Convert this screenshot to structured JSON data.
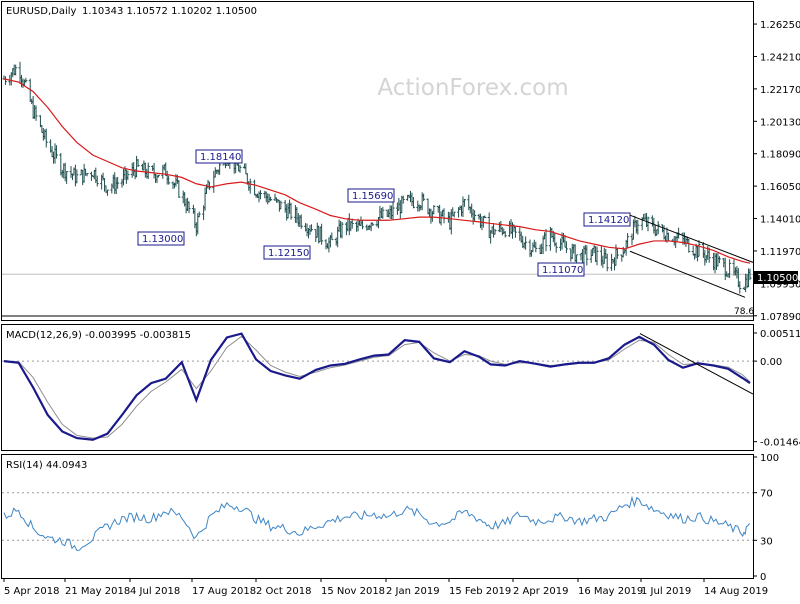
{
  "header": {
    "symbol": "EURUSD,Daily",
    "ohlc": "1.10343 1.10572 1.10202 1.10500"
  },
  "watermark": "ActionForex.com",
  "colors": {
    "background": "#ffffff",
    "price_bars": "#1f4e4e",
    "sma": "#d91a1a",
    "macd": "#1a1a8c",
    "signal": "#8f8f8f",
    "rsi": "#3f86c6",
    "box_border": "#1a1a8c",
    "channel": "#000000",
    "current_price_bg": "#000000",
    "current_price_fg": "#ffffff"
  },
  "chart_data": [
    {
      "type": "candlestick",
      "panel": "price",
      "title": "EURUSD,Daily",
      "ylim": [
        1.0775,
        1.2745
      ],
      "y_ticks": [
        "1.26250",
        "1.24210",
        "1.22170",
        "1.20130",
        "1.18090",
        "1.16050",
        "1.14010",
        "1.11970",
        "1.09930",
        "1.07890"
      ],
      "current_price": "1.10500",
      "x_tick_labels": [
        "5 Apr 2018",
        "21 May 2018",
        "4 Jul 2018",
        "17 Aug 2018",
        "2 Oct 2018",
        "15 Nov 2018",
        "2 Jan 2019",
        "15 Feb 2019",
        "2 Apr 2019",
        "16 May 2019",
        "1 Jul 2019",
        "14 Aug 2019"
      ],
      "key_levels": [
        {
          "label": "1.18140",
          "date": "Aug 2018",
          "value": 1.1814,
          "type": "high"
        },
        {
          "label": "1.13000",
          "date": "Aug 2018",
          "value": 1.13,
          "type": "low"
        },
        {
          "label": "1.12150",
          "date": "Nov 2018",
          "value": 1.1215,
          "type": "low"
        },
        {
          "label": "1.15690",
          "date": "Jan 2019",
          "value": 1.1569,
          "type": "high"
        },
        {
          "label": "1.14120",
          "date": "Jun 2019",
          "value": 1.1412,
          "type": "high"
        },
        {
          "label": "1.11070",
          "date": "May 2019",
          "value": 1.1107,
          "type": "low"
        }
      ],
      "fib_label": "78.6",
      "sma_series_name": "",
      "close_series": {
        "x": [
          "2018-04-05",
          "2018-04-15",
          "2018-04-25",
          "2018-05-05",
          "2018-05-15",
          "2018-05-25",
          "2018-06-05",
          "2018-06-15",
          "2018-06-25",
          "2018-07-05",
          "2018-07-15",
          "2018-07-25",
          "2018-08-05",
          "2018-08-15",
          "2018-08-25",
          "2018-09-05",
          "2018-09-15",
          "2018-09-25",
          "2018-10-05",
          "2018-10-15",
          "2018-10-25",
          "2018-11-05",
          "2018-11-15",
          "2018-11-25",
          "2018-12-05",
          "2018-12-15",
          "2018-12-25",
          "2019-01-05",
          "2019-01-15",
          "2019-01-25",
          "2019-02-05",
          "2019-02-15",
          "2019-02-25",
          "2019-03-05",
          "2019-03-15",
          "2019-03-25",
          "2019-04-05",
          "2019-04-15",
          "2019-04-25",
          "2019-05-05",
          "2019-05-15",
          "2019-05-25",
          "2019-06-05",
          "2019-06-15",
          "2019-06-25",
          "2019-07-05",
          "2019-07-15",
          "2019-07-25",
          "2019-08-05",
          "2019-08-15",
          "2019-08-25",
          "2019-08-30"
        ],
        "values": [
          1.228,
          1.236,
          1.208,
          1.186,
          1.172,
          1.166,
          1.17,
          1.16,
          1.164,
          1.172,
          1.168,
          1.17,
          1.155,
          1.136,
          1.165,
          1.18,
          1.17,
          1.158,
          1.152,
          1.146,
          1.14,
          1.132,
          1.124,
          1.136,
          1.134,
          1.14,
          1.142,
          1.15,
          1.152,
          1.144,
          1.138,
          1.15,
          1.14,
          1.132,
          1.134,
          1.128,
          1.12,
          1.13,
          1.122,
          1.116,
          1.118,
          1.112,
          1.122,
          1.14,
          1.134,
          1.13,
          1.126,
          1.12,
          1.114,
          1.108,
          1.098,
          1.105
        ]
      },
      "sma_values": [
        1.228,
        1.226,
        1.22,
        1.21,
        1.198,
        1.188,
        1.18,
        1.176,
        1.172,
        1.17,
        1.169,
        1.168,
        1.166,
        1.162,
        1.16,
        1.162,
        1.163,
        1.161,
        1.158,
        1.155,
        1.15,
        1.146,
        1.142,
        1.14,
        1.139,
        1.139,
        1.139,
        1.14,
        1.141,
        1.141,
        1.14,
        1.139,
        1.138,
        1.137,
        1.136,
        1.135,
        1.133,
        1.132,
        1.129,
        1.126,
        1.124,
        1.122,
        1.121,
        1.124,
        1.126,
        1.126,
        1.125,
        1.123,
        1.12,
        1.116,
        1.113,
        1.112
      ]
    },
    {
      "type": "line",
      "panel": "macd",
      "title": "MACD(12,26,9) -0.003995 -0.003815",
      "ylim": [
        -0.0158,
        0.0062
      ],
      "y_ticks": [
        "0.005114",
        "0.00",
        "-0.014647"
      ],
      "series": [
        {
          "name": "",
          "values": [
            0.0,
            -0.0003,
            -0.0048,
            -0.0098,
            -0.0128,
            -0.014,
            -0.0143,
            -0.0132,
            -0.0098,
            -0.0062,
            -0.004,
            -0.0032,
            -0.0002,
            -0.0071,
            0.0002,
            0.0043,
            0.005,
            0.0003,
            -0.0018,
            -0.0026,
            -0.0032,
            -0.0016,
            -0.0008,
            -0.0005,
            0.0003,
            0.001,
            0.0012,
            0.0038,
            0.0035,
            0.0005,
            -0.0002,
            0.0018,
            0.0008,
            -0.0006,
            -0.0008,
            0.0,
            -0.0005,
            -0.001,
            -0.0006,
            -0.0003,
            -0.0003,
            0.0005,
            0.003,
            0.0044,
            0.003,
            0.0002,
            -0.0012,
            -0.0004,
            -0.0008,
            -0.0014,
            -0.0031,
            -0.004
          ]
        },
        {
          "name": "",
          "values": [
            0.0,
            -0.0001,
            -0.003,
            -0.0075,
            -0.0115,
            -0.0135,
            -0.014,
            -0.0138,
            -0.0115,
            -0.0082,
            -0.0055,
            -0.0038,
            -0.0015,
            -0.005,
            -0.0018,
            0.0025,
            0.0045,
            0.002,
            -0.0008,
            -0.002,
            -0.0028,
            -0.002,
            -0.0012,
            -0.0007,
            0.0,
            0.0007,
            0.001,
            0.003,
            0.0034,
            0.0015,
            0.0,
            0.0012,
            0.001,
            0.0,
            -0.0006,
            -0.0003,
            -0.0004,
            -0.0008,
            -0.0007,
            -0.0004,
            -0.0003,
            0.0002,
            0.0022,
            0.0038,
            0.0034,
            0.0012,
            -0.0006,
            -0.0005,
            -0.0007,
            -0.0011,
            -0.0025,
            -0.0038
          ]
        }
      ]
    },
    {
      "type": "line",
      "panel": "rsi",
      "title": "RSI(14) 44.0943",
      "ylim": [
        0,
        100
      ],
      "y_ticks": [
        "100",
        "70",
        "30",
        "0"
      ],
      "levels": [
        70,
        30
      ],
      "series": [
        {
          "name": "",
          "values": [
            50,
            56,
            40,
            32,
            30,
            24,
            32,
            42,
            48,
            50,
            48,
            55,
            50,
            32,
            50,
            60,
            58,
            48,
            42,
            40,
            36,
            42,
            46,
            50,
            50,
            52,
            50,
            56,
            52,
            44,
            46,
            54,
            48,
            42,
            44,
            52,
            46,
            48,
            50,
            46,
            48,
            50,
            60,
            64,
            56,
            52,
            48,
            50,
            46,
            42,
            36,
            44
          ]
        }
      ]
    }
  ]
}
